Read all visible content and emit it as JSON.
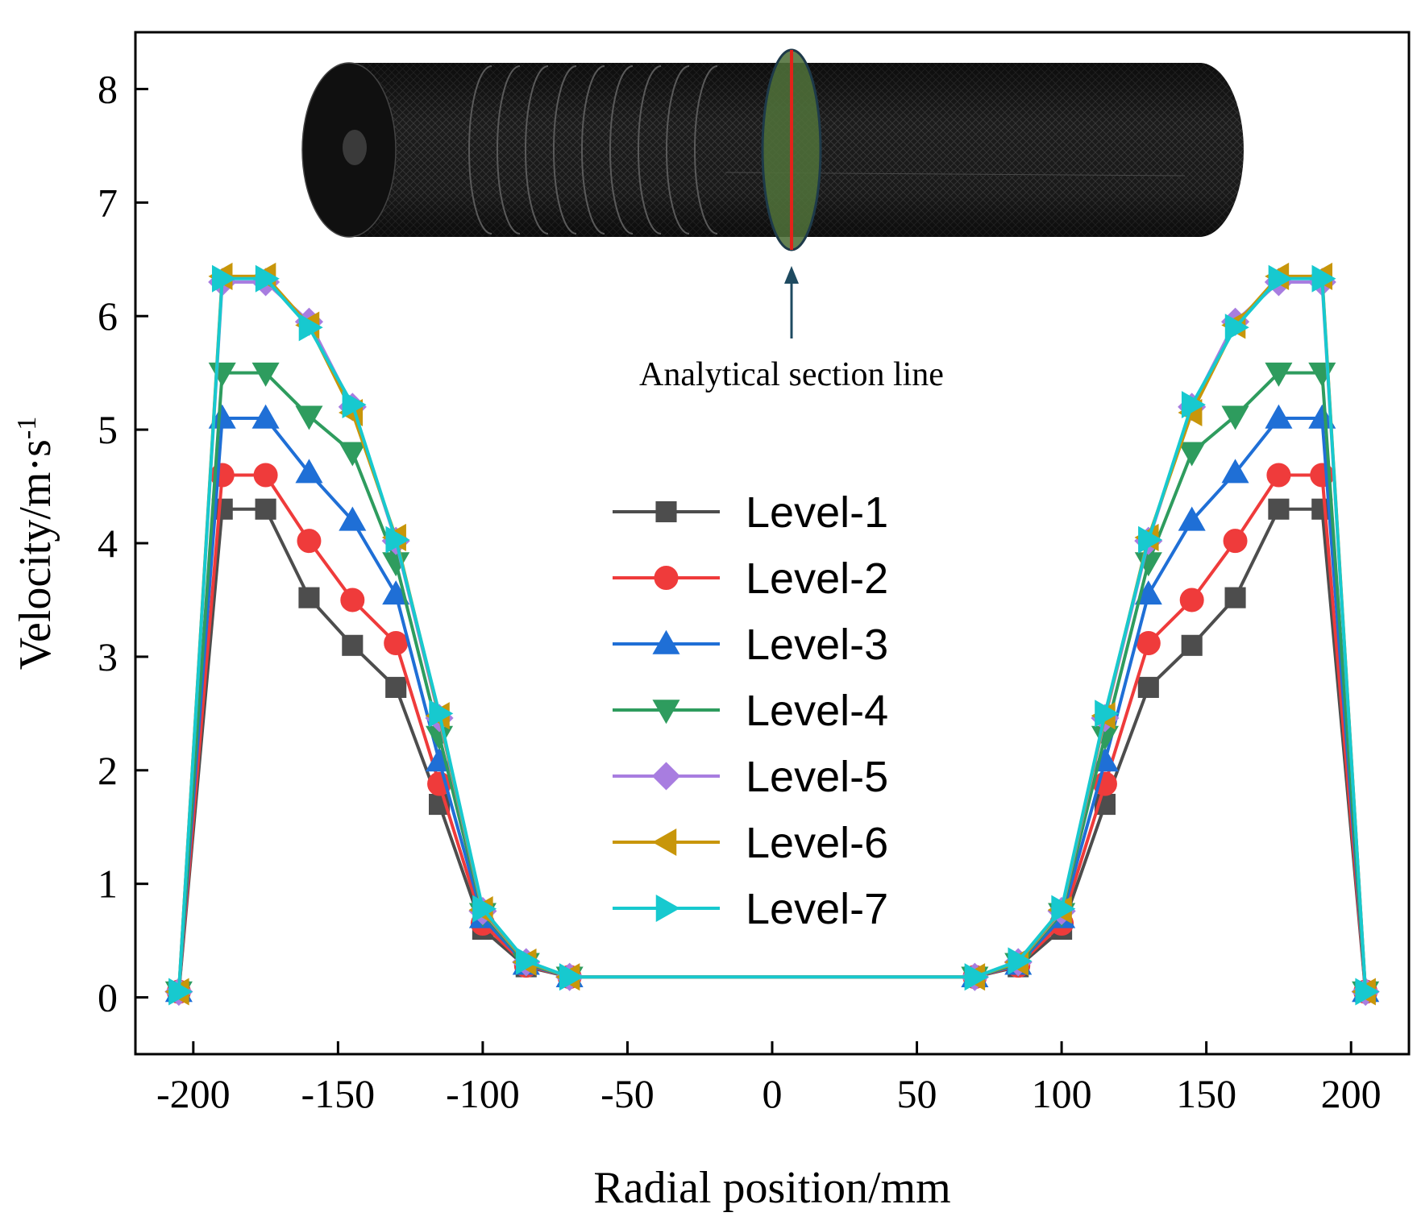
{
  "chart_data": {
    "type": "line",
    "xlabel": "Radial position/mm",
    "ylabel_main": "Velocity/m·s",
    "ylabel_sup": "-1",
    "xlim": [
      -220,
      220
    ],
    "ylim": [
      -0.5,
      8.5
    ],
    "xticks": [
      -200,
      -150,
      -100,
      -50,
      0,
      50,
      100,
      150,
      200
    ],
    "yticks": [
      0,
      1,
      2,
      3,
      4,
      5,
      6,
      7,
      8
    ],
    "x": [
      -205,
      -190,
      -175,
      -160,
      -145,
      -130,
      -115,
      -100,
      -85,
      -70,
      70,
      85,
      100,
      115,
      130,
      145,
      160,
      175,
      190,
      205
    ],
    "legend_position": "center",
    "series": [
      {
        "name": "Level-1",
        "color": "#4d4d4d",
        "marker": "square",
        "values": [
          0.05,
          4.3,
          4.3,
          3.52,
          3.1,
          2.73,
          1.7,
          0.6,
          0.27,
          0.18,
          0.18,
          0.27,
          0.6,
          1.7,
          2.73,
          3.1,
          3.52,
          4.3,
          4.3,
          0.05
        ]
      },
      {
        "name": "Level-2",
        "color": "#ef3b3b",
        "marker": "circle",
        "values": [
          0.05,
          4.6,
          4.6,
          4.02,
          3.5,
          3.12,
          1.88,
          0.65,
          0.28,
          0.18,
          0.18,
          0.28,
          0.65,
          1.88,
          3.12,
          3.5,
          4.02,
          4.6,
          4.6,
          0.05
        ]
      },
      {
        "name": "Level-3",
        "color": "#1f6fd6",
        "marker": "triangle-up",
        "values": [
          0.05,
          5.1,
          5.1,
          4.62,
          4.2,
          3.55,
          2.08,
          0.7,
          0.29,
          0.18,
          0.18,
          0.29,
          0.7,
          2.08,
          3.55,
          4.2,
          4.62,
          5.1,
          5.1,
          0.05
        ]
      },
      {
        "name": "Level-4",
        "color": "#2e9c5e",
        "marker": "triangle-down",
        "values": [
          0.05,
          5.5,
          5.5,
          5.12,
          4.8,
          3.83,
          2.3,
          0.74,
          0.3,
          0.18,
          0.18,
          0.3,
          0.74,
          2.3,
          3.83,
          4.8,
          5.12,
          5.5,
          5.5,
          0.05
        ]
      },
      {
        "name": "Level-5",
        "color": "#a87de0",
        "marker": "diamond",
        "values": [
          0.05,
          6.3,
          6.3,
          5.95,
          5.2,
          4.02,
          2.46,
          0.76,
          0.31,
          0.18,
          0.18,
          0.31,
          0.76,
          2.46,
          4.02,
          5.2,
          5.95,
          6.3,
          6.3,
          0.05
        ]
      },
      {
        "name": "Level-6",
        "color": "#c8960a",
        "marker": "triangle-left",
        "values": [
          0.05,
          6.35,
          6.35,
          5.92,
          5.15,
          4.05,
          2.48,
          0.77,
          0.31,
          0.18,
          0.18,
          0.31,
          0.77,
          2.48,
          4.05,
          5.15,
          5.92,
          6.35,
          6.35,
          0.05
        ]
      },
      {
        "name": "Level-7",
        "color": "#17c9cf",
        "marker": "triangle-right",
        "values": [
          0.05,
          6.33,
          6.33,
          5.9,
          5.22,
          4.03,
          2.5,
          0.78,
          0.32,
          0.18,
          0.18,
          0.32,
          0.78,
          2.5,
          4.03,
          5.22,
          5.9,
          6.33,
          6.33,
          0.05
        ]
      }
    ],
    "annotation": {
      "text": "Analytical section line"
    }
  }
}
